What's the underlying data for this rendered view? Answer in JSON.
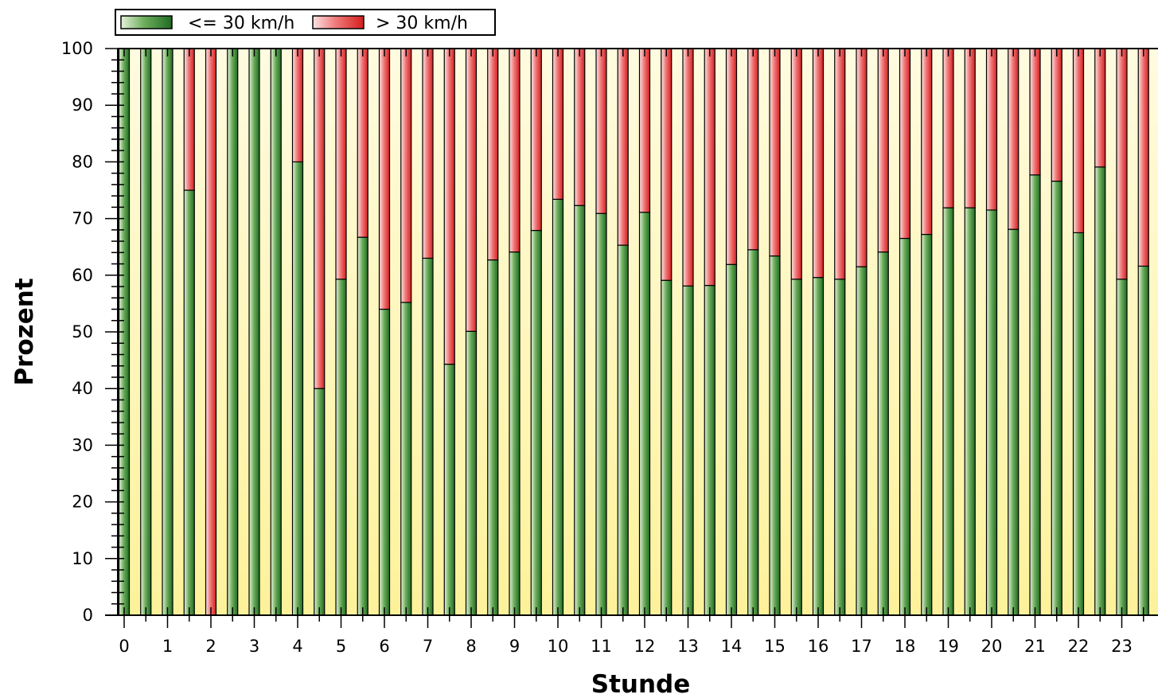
{
  "chart_data": {
    "type": "bar",
    "stacked": true,
    "xlabel": "Stunde",
    "ylabel": "Prozent",
    "ylim": [
      0,
      100
    ],
    "y_ticks": [
      0,
      10,
      20,
      30,
      40,
      50,
      60,
      70,
      80,
      90,
      100
    ],
    "x_tick_labels": [
      "0",
      "1",
      "2",
      "3",
      "4",
      "5",
      "6",
      "7",
      "8",
      "9",
      "10",
      "11",
      "12",
      "13",
      "14",
      "15",
      "16",
      "17",
      "18",
      "19",
      "20",
      "21",
      "22",
      "23"
    ],
    "x": [
      0,
      0.5,
      1,
      1.5,
      2,
      2.5,
      3,
      3.5,
      4,
      4.5,
      5,
      5.5,
      6,
      6.5,
      7,
      7.5,
      8,
      8.5,
      9,
      9.5,
      10,
      10.5,
      11,
      11.5,
      12,
      12.5,
      13,
      13.5,
      14,
      14.5,
      15,
      15.5,
      16,
      16.5,
      17,
      17.5,
      18,
      18.5,
      19,
      19.5,
      20,
      20.5,
      21,
      21.5,
      22,
      22.5,
      23,
      23.5
    ],
    "series": [
      {
        "name": "<= 30 km/h",
        "color": "#2e7d32",
        "values": [
          100,
          100,
          100,
          75,
          0,
          100,
          100,
          100,
          80,
          40,
          59.3,
          66.7,
          54,
          55.2,
          63,
          44.3,
          50.1,
          62.7,
          64.1,
          67.9,
          73.4,
          72.3,
          70.9,
          65.3,
          71.1,
          59.1,
          58.1,
          58.2,
          61.9,
          64.5,
          63.4,
          59.3,
          59.6,
          59.3,
          61.5,
          64.1,
          66.5,
          67.2,
          71.9,
          71.9,
          71.5,
          68.1,
          77.7,
          76.6,
          67.5,
          79.1,
          59.3,
          61.6
        ]
      },
      {
        "name": "> 30 km/h",
        "color": "#e53935",
        "values": [
          0,
          0,
          0,
          25,
          100,
          0,
          0,
          0,
          20,
          60,
          40.7,
          33.3,
          46,
          44.8,
          37,
          55.7,
          49.9,
          37.3,
          35.9,
          32.1,
          26.6,
          27.7,
          29.1,
          34.7,
          28.9,
          40.9,
          41.9,
          41.8,
          38.1,
          35.5,
          36.6,
          40.7,
          40.4,
          40.7,
          38.5,
          35.9,
          33.5,
          32.8,
          28.1,
          28.1,
          28.5,
          31.9,
          22.3,
          23.4,
          32.5,
          20.9,
          40.7,
          38.4
        ]
      }
    ],
    "legend_position": "top-left",
    "plot_background": "#fdf6c8",
    "grid": false
  }
}
